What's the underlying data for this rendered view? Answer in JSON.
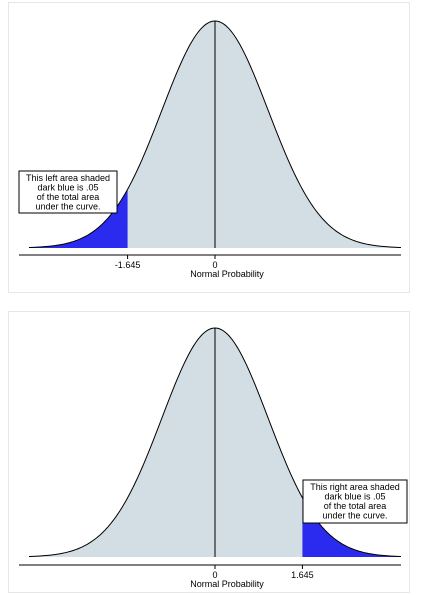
{
  "colors": {
    "curve_fill": "#d3dde4",
    "tail_fill": "#2b2bf0",
    "stroke": "#000000"
  },
  "chart_data": [
    {
      "type": "area",
      "title": "",
      "xlabel": "Normal Probability",
      "ylabel": "",
      "distribution": "standard-normal",
      "xlim": [
        -3.5,
        3.5
      ],
      "ticks": [
        {
          "value": -1.645,
          "label": "-1.645"
        },
        {
          "value": 0,
          "label": "0"
        }
      ],
      "shaded_tail": {
        "side": "left",
        "from": -3.5,
        "to": -1.645
      },
      "annotation": {
        "lines": [
          "This left area shaded",
          "dark blue is .05",
          "of the total area",
          "under the curve."
        ]
      }
    },
    {
      "type": "area",
      "title": "",
      "xlabel": "Normal Probability",
      "ylabel": "",
      "distribution": "standard-normal",
      "xlim": [
        -3.5,
        3.5
      ],
      "ticks": [
        {
          "value": 0,
          "label": "0"
        },
        {
          "value": 1.645,
          "label": "1.645"
        }
      ],
      "shaded_tail": {
        "side": "right",
        "from": 1.645,
        "to": 3.5
      },
      "annotation": {
        "lines": [
          "This right area shaded",
          "dark blue is .05",
          "of the total area",
          "under the curve."
        ]
      }
    }
  ]
}
